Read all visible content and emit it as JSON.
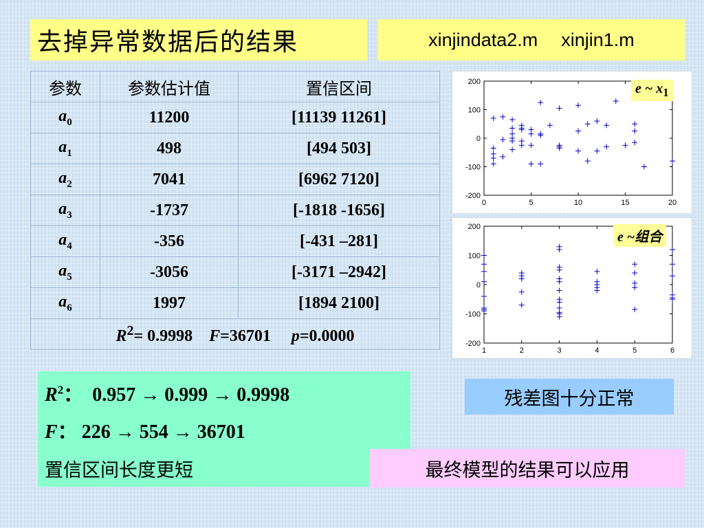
{
  "title": "去掉异常数据后的结果",
  "files": [
    "xinjindata2.m",
    "xinjin1.m"
  ],
  "table": {
    "headers": [
      "参数",
      "参数估计值",
      "置信区间"
    ],
    "rows": [
      {
        "name": "a",
        "sub": "0",
        "estimate": "11200",
        "interval": "[11139  11261]"
      },
      {
        "name": "a",
        "sub": "1",
        "estimate": "498",
        "interval": "[494  503]"
      },
      {
        "name": "a",
        "sub": "2",
        "estimate": "7041",
        "interval": "[6962  7120]"
      },
      {
        "name": "a",
        "sub": "3",
        "estimate": "-1737",
        "interval": "[-1818  -1656]"
      },
      {
        "name": "a",
        "sub": "4",
        "estimate": "-356",
        "interval": "[-431  –281]"
      },
      {
        "name": "a",
        "sub": "5",
        "estimate": "-3056",
        "interval": "[-3171 –2942]"
      },
      {
        "name": "a",
        "sub": "6",
        "estimate": "1997",
        "interval": "[1894  2100]"
      }
    ],
    "footer": {
      "r2_label": "R",
      "r2_sup": "2",
      "r2_value": "= 0.9998",
      "f_label": "F",
      "f_value": "=36701",
      "p_label": "p",
      "p_value": "=0.0000"
    }
  },
  "chart_data": [
    {
      "type": "scatter",
      "legend": "e ~ x1",
      "legend_main": "e ~ x",
      "legend_sub": "1",
      "xlim": [
        0,
        20
      ],
      "ylim": [
        -200,
        200
      ],
      "xticks": [
        "0",
        "5",
        "10",
        "15",
        "20"
      ],
      "yticks": [
        "200",
        "100",
        "0",
        "-100",
        "-200"
      ],
      "marker": "+",
      "color": "#0000cc",
      "points": [
        [
          1,
          70
        ],
        [
          1,
          -35
        ],
        [
          1,
          -55
        ],
        [
          1,
          -70
        ],
        [
          1,
          -90
        ],
        [
          2,
          75
        ],
        [
          2,
          -5
        ],
        [
          2,
          -65
        ],
        [
          3,
          65
        ],
        [
          3,
          35
        ],
        [
          3,
          15
        ],
        [
          3,
          0
        ],
        [
          3,
          -10
        ],
        [
          3,
          -40
        ],
        [
          4,
          45
        ],
        [
          4,
          35
        ],
        [
          4,
          30
        ],
        [
          4,
          -10
        ],
        [
          4,
          -25
        ],
        [
          5,
          30
        ],
        [
          5,
          15
        ],
        [
          5,
          -25
        ],
        [
          5,
          -90
        ],
        [
          6,
          125
        ],
        [
          6,
          15
        ],
        [
          6,
          10
        ],
        [
          6,
          -90
        ],
        [
          7,
          45
        ],
        [
          8,
          105
        ],
        [
          8,
          -25
        ],
        [
          8,
          -30
        ],
        [
          8,
          -35
        ],
        [
          10,
          115
        ],
        [
          10,
          25
        ],
        [
          10,
          -45
        ],
        [
          11,
          50
        ],
        [
          11,
          -80
        ],
        [
          12,
          60
        ],
        [
          12,
          -45
        ],
        [
          13,
          45
        ],
        [
          13,
          -30
        ],
        [
          14,
          130
        ],
        [
          15,
          -25
        ],
        [
          16,
          50
        ],
        [
          16,
          25
        ],
        [
          16,
          -15
        ],
        [
          17,
          -100
        ],
        [
          20,
          -80
        ]
      ]
    },
    {
      "type": "scatter",
      "legend": "e ~组合",
      "legend_main": "e ~组合",
      "xlim": [
        1,
        6
      ],
      "ylim": [
        -200,
        200
      ],
      "xticks": [
        "1",
        "2",
        "3",
        "4",
        "5",
        "6"
      ],
      "yticks": [
        "200",
        "100",
        "0",
        "-100",
        "-200"
      ],
      "marker": "+",
      "color": "#0000cc",
      "points": [
        [
          1,
          100
        ],
        [
          1,
          70
        ],
        [
          1,
          45
        ],
        [
          1,
          10
        ],
        [
          1,
          -40
        ],
        [
          1,
          -80
        ],
        [
          1,
          -85
        ],
        [
          1,
          -90
        ],
        [
          2,
          40
        ],
        [
          2,
          30
        ],
        [
          2,
          20
        ],
        [
          2,
          -25
        ],
        [
          2,
          -70
        ],
        [
          3,
          130
        ],
        [
          3,
          120
        ],
        [
          3,
          60
        ],
        [
          3,
          50
        ],
        [
          3,
          20
        ],
        [
          3,
          10
        ],
        [
          3,
          -20
        ],
        [
          3,
          -50
        ],
        [
          3,
          -60
        ],
        [
          3,
          -80
        ],
        [
          3,
          -95
        ],
        [
          3,
          -100
        ],
        [
          3,
          -110
        ],
        [
          4,
          45
        ],
        [
          4,
          10
        ],
        [
          4,
          0
        ],
        [
          4,
          -10
        ],
        [
          4,
          -20
        ],
        [
          5,
          70
        ],
        [
          5,
          40
        ],
        [
          5,
          5
        ],
        [
          5,
          -10
        ],
        [
          5,
          -85
        ],
        [
          6,
          120
        ],
        [
          6,
          70
        ],
        [
          6,
          30
        ],
        [
          6,
          -35
        ],
        [
          6,
          -45
        ],
        [
          6,
          -50
        ]
      ]
    }
  ],
  "summary": {
    "r2_label": "R",
    "r2_sup": "2",
    "r2_colon": "：",
    "r2_values": "0.957 → 0.999 → 0.9998",
    "f_label": "F",
    "f_colon": "：",
    "f_values": "226 → 554 → 36701",
    "note": "置信区间长度更短"
  },
  "residual_note": "残差图十分正常",
  "conclusion": "最终模型的结果可以应用"
}
